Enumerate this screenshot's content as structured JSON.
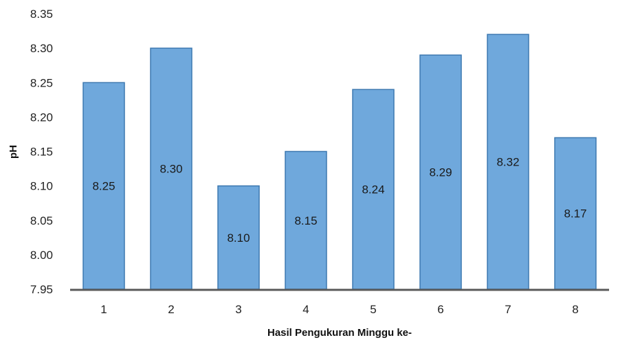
{
  "chart_data": {
    "type": "bar",
    "categories": [
      "1",
      "2",
      "3",
      "4",
      "5",
      "6",
      "7",
      "8"
    ],
    "values": [
      8.25,
      8.3,
      8.1,
      8.15,
      8.24,
      8.29,
      8.32,
      8.17
    ],
    "data_labels": [
      "8.25",
      "8.30",
      "8.10",
      "8.15",
      "8.24",
      "8.29",
      "8.32",
      "8.17"
    ],
    "xlabel": "Hasil Pengukuran Minggu ke-",
    "ylabel": "pH",
    "ylim": [
      7.95,
      8.35
    ],
    "yticks": [
      7.95,
      8.0,
      8.05,
      8.1,
      8.15,
      8.2,
      8.25,
      8.3,
      8.35
    ],
    "ytick_labels": [
      "7.95",
      "8.00",
      "8.05",
      "8.10",
      "8.15",
      "8.20",
      "8.25",
      "8.30",
      "8.35"
    ],
    "grid": false,
    "legend": "none",
    "colors": {
      "bar_fill": "#6fa8dc",
      "bar_stroke": "#3d78b0",
      "axis": "#595959"
    }
  }
}
